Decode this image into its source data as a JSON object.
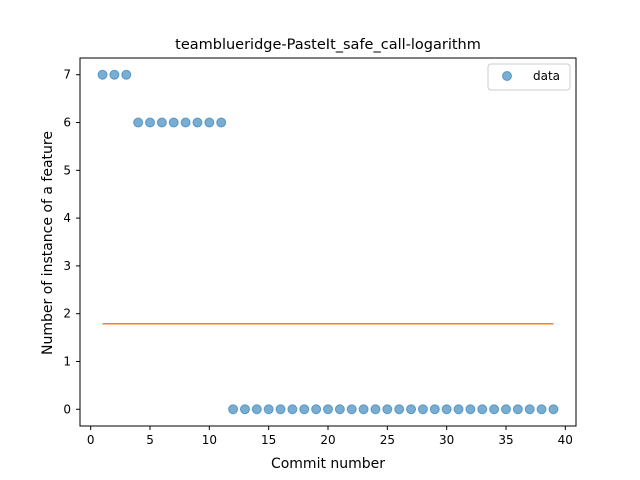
{
  "chart_data": {
    "type": "scatter",
    "title": "teamblueridge-PasteIt_safe_call-logarithm",
    "xlabel": "Commit number",
    "ylabel": "Number of instance of a feature",
    "xlim": [
      -0.9,
      40.9
    ],
    "ylim": [
      -0.35,
      7.35
    ],
    "xticks": [
      0,
      5,
      10,
      15,
      20,
      25,
      30,
      35,
      40
    ],
    "yticks": [
      0,
      1,
      2,
      3,
      4,
      5,
      6,
      7
    ],
    "grid": false,
    "legend_position": "top-right",
    "series": [
      {
        "name": "data",
        "kind": "scatter",
        "color": "#1f77b4",
        "x": [
          1,
          2,
          3,
          4,
          5,
          6,
          7,
          8,
          9,
          10,
          11,
          12,
          13,
          14,
          15,
          16,
          17,
          18,
          19,
          20,
          21,
          22,
          23,
          24,
          25,
          26,
          27,
          28,
          29,
          30,
          31,
          32,
          33,
          34,
          35,
          36,
          37,
          38,
          39
        ],
        "y": [
          7,
          7,
          7,
          6,
          6,
          6,
          6,
          6,
          6,
          6,
          6,
          0,
          0,
          0,
          0,
          0,
          0,
          0,
          0,
          0,
          0,
          0,
          0,
          0,
          0,
          0,
          0,
          0,
          0,
          0,
          0,
          0,
          0,
          0,
          0,
          0,
          0,
          0,
          0
        ]
      },
      {
        "kind": "line",
        "color": "#ff7f0e",
        "x": [
          1,
          39
        ],
        "y": [
          1.79,
          1.79
        ]
      }
    ]
  }
}
